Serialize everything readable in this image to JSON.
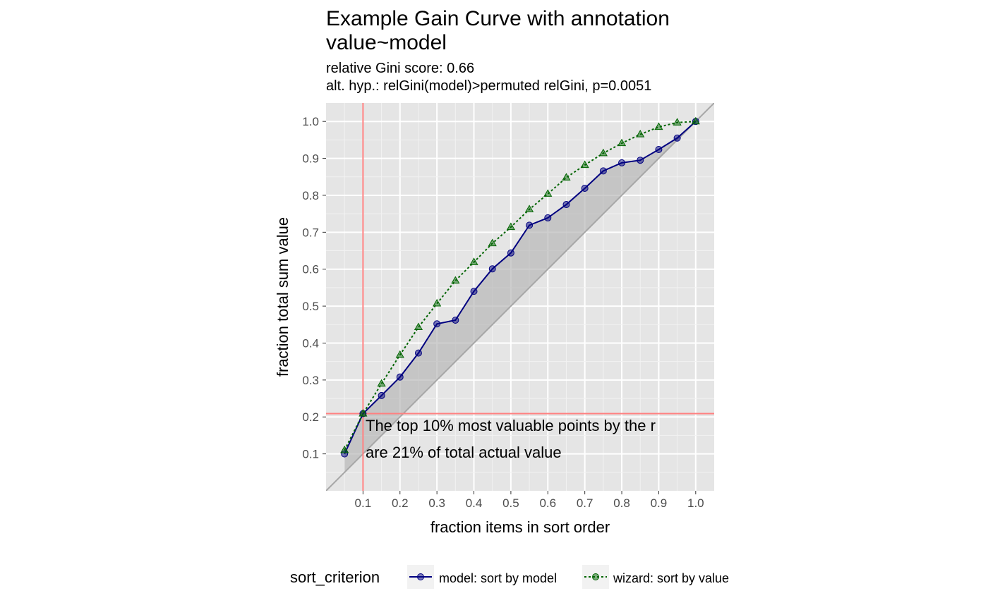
{
  "chart_data": {
    "type": "line",
    "title": "Example Gain Curve with annotation",
    "title_line2": "value~model",
    "subtitle": "relative Gini score: 0.66",
    "subtitle_line2": "alt. hyp.: relGini(model)>permuted relGini, p=0.0051",
    "xlabel": "fraction items in sort order",
    "ylabel": "fraction total sum value",
    "xlim": [
      0.0,
      1.05
    ],
    "ylim": [
      0.0,
      1.05
    ],
    "x_ticks": [
      0.1,
      0.2,
      0.3,
      0.4,
      0.5,
      0.6,
      0.7,
      0.8,
      0.9,
      1.0
    ],
    "x_tick_labels": [
      "0.1",
      "0.2",
      "0.3",
      "0.4",
      "0.5",
      "0.6",
      "0.7",
      "0.8",
      "0.9",
      "1.0"
    ],
    "y_ticks": [
      0.1,
      0.2,
      0.3,
      0.4,
      0.5,
      0.6,
      0.7,
      0.8,
      0.9,
      1.0
    ],
    "y_tick_labels": [
      "0.1",
      "0.2",
      "0.3",
      "0.4",
      "0.5",
      "0.6",
      "0.7",
      "0.8",
      "0.9",
      "1.0"
    ],
    "x": [
      0.05,
      0.1,
      0.15,
      0.2,
      0.25,
      0.3,
      0.35,
      0.4,
      0.45,
      0.5,
      0.55,
      0.6,
      0.65,
      0.7,
      0.75,
      0.8,
      0.85,
      0.9,
      0.95,
      1.0
    ],
    "series": [
      {
        "name": "model: sort by model",
        "color": "#000080",
        "linestyle": "solid",
        "marker": "circle",
        "values": [
          0.1,
          0.209,
          0.258,
          0.308,
          0.373,
          0.452,
          0.462,
          0.54,
          0.601,
          0.644,
          0.719,
          0.739,
          0.775,
          0.819,
          0.866,
          0.888,
          0.895,
          0.924,
          0.955,
          1.0
        ]
      },
      {
        "name": "wizard: sort by value",
        "color": "#006400",
        "linestyle": "dotted",
        "marker": "triangle",
        "values": [
          0.11,
          0.209,
          0.29,
          0.368,
          0.443,
          0.507,
          0.569,
          0.619,
          0.67,
          0.714,
          0.762,
          0.804,
          0.848,
          0.882,
          0.914,
          0.941,
          0.965,
          0.985,
          0.997,
          1.0
        ]
      }
    ],
    "reference_line": {
      "from": [
        0.0,
        0.0
      ],
      "to": [
        1.05,
        1.05
      ],
      "color": "#a6a6a6"
    },
    "annotation_lines": {
      "x": 0.1,
      "y": 0.209,
      "color": "#ff8080"
    },
    "annotation_text_line1": "The top 10% most valuable points by the r",
    "annotation_text_line2": "are 21% of total actual value",
    "legend": {
      "title": "sort_criterion",
      "position": "bottom",
      "entries": [
        "model: sort by model",
        "wizard: sort by value"
      ]
    },
    "panel_background": "#e5e5e5",
    "grid": true
  }
}
